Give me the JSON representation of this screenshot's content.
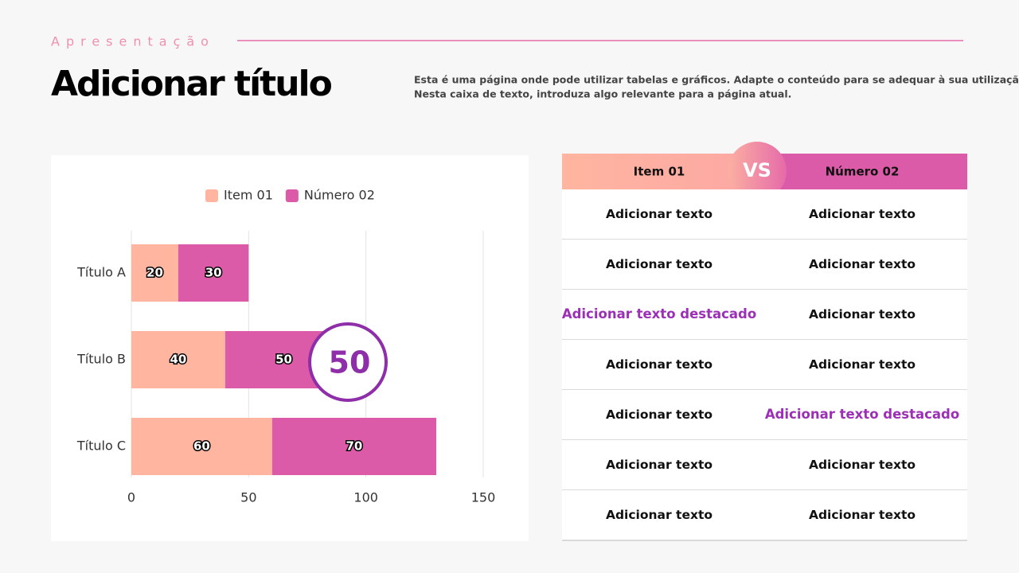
{
  "header": {
    "kicker": "Apresentação",
    "title": "Adicionar título",
    "description_lines": [
      "Esta é uma página onde pode utilizar tabelas e gráficos. Adapte o conteúdo para se adequar à sua utilização.",
      "Nesta caixa de texto, introduza algo relevante para a página atual."
    ]
  },
  "chart_data": {
    "type": "bar",
    "orientation": "horizontal",
    "stacked": true,
    "categories": [
      "Título A",
      "Título B",
      "Título C"
    ],
    "series": [
      {
        "name": "Item 01",
        "color": "#ffb5a0",
        "values": [
          20,
          40,
          60
        ]
      },
      {
        "name": "Número 02",
        "color": "#dc5ba8",
        "values": [
          30,
          50,
          70
        ]
      }
    ],
    "xlim": [
      0,
      150
    ],
    "xticks": [
      0,
      50,
      100,
      150
    ],
    "grid": true,
    "legend": "top",
    "annotation": "50"
  },
  "table": {
    "header": [
      "Item 01",
      "VS",
      "Número 02"
    ],
    "rows": [
      [
        "Adicionar texto",
        "Adicionar texto"
      ],
      [
        "Adicionar texto",
        "Adicionar texto"
      ],
      [
        "Adicionar texto destacado",
        "Adicionar texto"
      ],
      [
        "Adicionar texto",
        "Adicionar texto"
      ],
      [
        "Adicionar texto",
        "Adicionar texto destacado"
      ],
      [
        "Adicionar texto",
        "Adicionar texto"
      ],
      [
        "Adicionar texto",
        "Adicionar texto"
      ]
    ],
    "highlighted_cells": [
      [
        2,
        0
      ],
      [
        4,
        1
      ]
    ],
    "highlight_color": "#9b2fb5"
  }
}
